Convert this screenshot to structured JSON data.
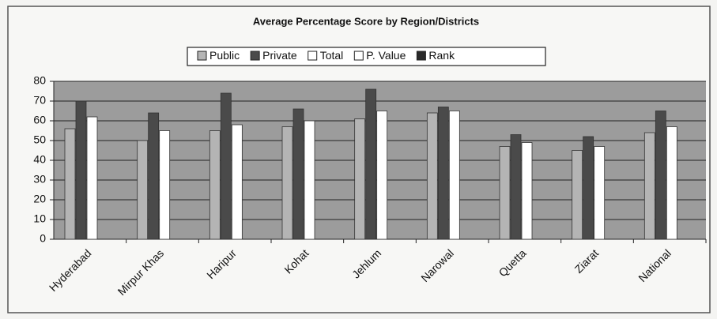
{
  "chart_data": {
    "type": "bar",
    "title": "Average Percentage Score by Region/Districts",
    "categories": [
      "Hyderabad",
      "Mirpur Khas",
      "Haripur",
      "Kohat",
      "Jehlum",
      "Narowal",
      "Quetta",
      "Ziarat",
      "National"
    ],
    "series": [
      {
        "name": "Public",
        "color": "#b4b4b4",
        "values": [
          56,
          50,
          55,
          57,
          61,
          64,
          47,
          45,
          54
        ]
      },
      {
        "name": "Private",
        "color": "#4a4a4a",
        "values": [
          70,
          64,
          74,
          66,
          76,
          67,
          53,
          52,
          65
        ]
      },
      {
        "name": "Total",
        "color": "#ffffff",
        "values": [
          62,
          55,
          58,
          60,
          65,
          65,
          49,
          47,
          57
        ]
      },
      {
        "name": "P. Value",
        "color": "#ffffff",
        "values": [
          null,
          null,
          null,
          null,
          null,
          null,
          null,
          null,
          null
        ]
      },
      {
        "name": "Rank",
        "color": "#2a2a2a",
        "values": [
          null,
          null,
          null,
          null,
          null,
          null,
          null,
          null,
          null
        ]
      }
    ],
    "ylim": [
      0,
      80
    ],
    "yticks": [
      0,
      10,
      20,
      30,
      40,
      50,
      60,
      70,
      80
    ],
    "grid": true,
    "legend": "top"
  }
}
